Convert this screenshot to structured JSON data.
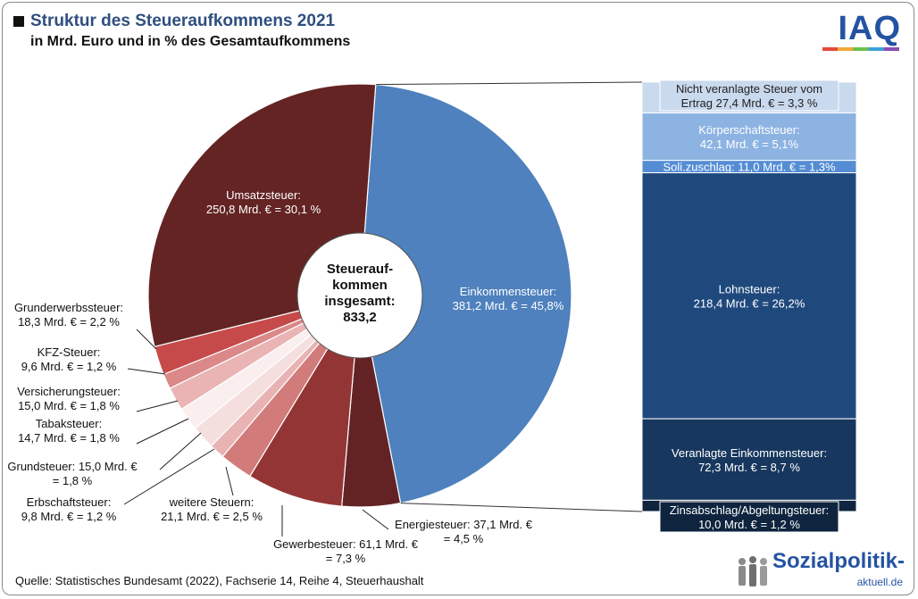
{
  "header": {
    "title": "Struktur des Steueraufkommens 2021",
    "subtitle": "in Mrd. Euro und in % des Gesamtaufkommens"
  },
  "logo": {
    "text": "IAQ"
  },
  "center": {
    "line1": "Steuerauf-",
    "line2": "kommen",
    "line3": "insgesamt:",
    "value": "833,2"
  },
  "footer": {
    "source": "Quelle: Statistisches Bundesamt (2022), Fachserie 14, Reihe 4, Steuerhaushalt"
  },
  "brand": {
    "title": "Sozialpolitik-",
    "sub": "aktuell.de"
  },
  "chart_data": {
    "type": "pie",
    "total": 833.2,
    "unit": "Mrd. €",
    "slices": [
      {
        "name": "Einkommensteuer",
        "value": 381.2,
        "percent": 45.8,
        "color": "#4e81bd",
        "label": [
          "Einkommensteuer:",
          "381,2 Mrd. € = 45,8%"
        ]
      },
      {
        "name": "Energiesteuer",
        "value": 37.1,
        "percent": 4.5,
        "color": "#632325",
        "label": [
          "Energiesteuer: 37,1 Mrd. €",
          "= 4,5 %"
        ]
      },
      {
        "name": "Gewerbesteuer",
        "value": 61.1,
        "percent": 7.3,
        "color": "#943535",
        "label": [
          "Gewerbesteuer: 61,1 Mrd. €",
          "= 7,3 %"
        ]
      },
      {
        "name": "weitere Steuern",
        "value": 21.1,
        "percent": 2.5,
        "color": "#d27b7b",
        "label": [
          "weitere Steuern:",
          "21,1 Mrd. € = 2,5 %"
        ]
      },
      {
        "name": "Erbschaftsteuer",
        "value": 9.8,
        "percent": 1.2,
        "color": "#e9b3b3",
        "label": [
          "Erbschaftsteuer:",
          "9,8 Mrd. € = 1,2 %"
        ]
      },
      {
        "name": "Grundsteuer",
        "value": 15.0,
        "percent": 1.8,
        "color": "#f5dede",
        "label": [
          "Grundsteuer: 15,0 Mrd. €",
          "= 1,8 %"
        ]
      },
      {
        "name": "Tabaksteuer",
        "value": 14.7,
        "percent": 1.8,
        "color": "#fbeeee",
        "label": [
          "Tabaksteuer:",
          "14,7 Mrd. € = 1,8 %"
        ]
      },
      {
        "name": "Versicherungsteuer",
        "value": 15.0,
        "percent": 1.8,
        "color": "#eab4b4",
        "label": [
          "Versicherungsteuer:",
          "15,0 Mrd. € = 1,8 %"
        ]
      },
      {
        "name": "KFZ-Steuer",
        "value": 9.6,
        "percent": 1.2,
        "color": "#db8888",
        "label": [
          "KFZ-Steuer:",
          "9,6 Mrd. € = 1,2 %"
        ]
      },
      {
        "name": "Grunderwerbssteuer",
        "value": 18.3,
        "percent": 2.2,
        "color": "#c64a4a",
        "label": [
          "Grunderwerbssteuer:",
          "18,3 Mrd. € = 2,2 %"
        ]
      },
      {
        "name": "Umsatzsteuer",
        "value": 250.8,
        "percent": 30.1,
        "color": "#642424",
        "label": [
          "Umsatzsteuer:",
          "250,8 Mrd. € = 30,1 %"
        ]
      }
    ],
    "breakdown": {
      "of": "Einkommensteuer",
      "segments": [
        {
          "name": "Nicht veranlagte Steuer vom Ertrag",
          "value": 27.4,
          "percent": 3.3,
          "color": "#c9d9ee",
          "text_color": "#222222",
          "label": [
            "Nicht veranlagte Steuer vom",
            "Ertrag 27,4 Mrd. € = 3,3 %"
          ]
        },
        {
          "name": "Körperschaftsteuer",
          "value": 42.1,
          "percent": 5.1,
          "color": "#8db3e2",
          "text_color": "#ffffff",
          "label": [
            "Körperschaftsteuer:",
            "42,1 Mrd. € = 5,1%"
          ]
        },
        {
          "name": "Soli.zuschlag",
          "value": 11.0,
          "percent": 1.3,
          "color": "#548dd4",
          "text_color": "#ffffff",
          "label": [
            "Soli.zuschlag: 11,0 Mrd. € = 1,3%"
          ]
        },
        {
          "name": "Lohnsteuer",
          "value": 218.4,
          "percent": 26.2,
          "color": "#1f497d",
          "text_color": "#ffffff",
          "label": [
            "Lohnsteuer:",
            "218,4 Mrd. € = 26,2%"
          ]
        },
        {
          "name": "Veranlagte Einkommensteuer",
          "value": 72.3,
          "percent": 8.7,
          "color": "#17375e",
          "text_color": "#ffffff",
          "label": [
            "Veranlagte Einkommensteuer:",
            "72,3 Mrd. € = 8,7 %"
          ]
        },
        {
          "name": "Zinsabschlag/Abgeltungsteuer",
          "value": 10.0,
          "percent": 1.2,
          "color": "#0f243e",
          "text_color": "#ffffff",
          "label": [
            "Zinsabschlag/Abgeltungsteuer:",
            "10,0 Mrd. € = 1,2 %"
          ]
        }
      ]
    }
  }
}
